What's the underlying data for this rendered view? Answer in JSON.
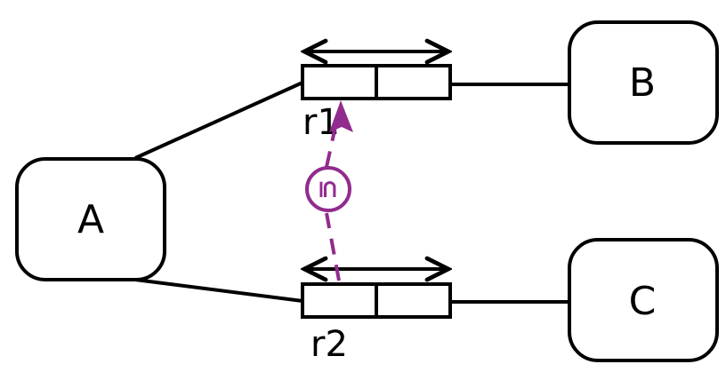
{
  "nodes": {
    "a": {
      "label": "A"
    },
    "b": {
      "label": "B"
    },
    "c": {
      "label": "C"
    }
  },
  "buffers": {
    "r1": {
      "label": "r1"
    },
    "r2": {
      "label": "r2"
    }
  },
  "relation": {
    "symbol": "⊆",
    "color": "#922b8e"
  },
  "colors": {
    "stroke": "#000000",
    "background": "#ffffff"
  }
}
